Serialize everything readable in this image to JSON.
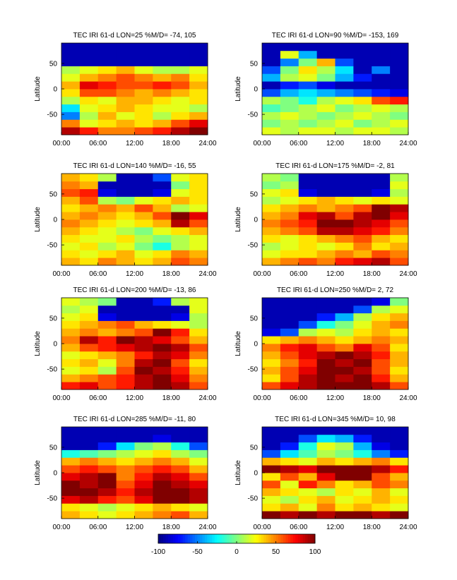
{
  "figure": {
    "ylabel": "Latitude",
    "x_ticks": [
      "00:00",
      "06:00",
      "12:00",
      "18:00",
      "24:00"
    ],
    "y_ticks": [
      "50",
      "0",
      "-50"
    ],
    "colorbar": {
      "ticks": [
        "-100",
        "-50",
        "0",
        "50",
        "100"
      ],
      "range": [
        -100,
        100
      ],
      "colormap": "jet",
      "missing_color": "#ffffff"
    }
  },
  "chart_data": [
    {
      "type": "heatmap",
      "title": "TEC IRI 61-d LON=25 %M/D= -74, 105",
      "x": "local time 00:00-24:00",
      "y": "latitude -90..90",
      "xlim": [
        0,
        24
      ],
      "ylim": [
        -90,
        90
      ],
      "yticks": [
        50,
        0,
        -50
      ],
      "hour_bands": [
        0,
        3,
        6,
        9,
        12,
        15,
        18,
        21,
        24
      ],
      "lat_bands": [
        -90,
        -75,
        -60,
        -45,
        -30,
        -15,
        0,
        15,
        30,
        45,
        60,
        75,
        90
      ],
      "values": [
        [
          90,
          70,
          50,
          50,
          60,
          70,
          90,
          100
        ],
        [
          50,
          20,
          30,
          40,
          30,
          40,
          60,
          80
        ],
        [
          -50,
          10,
          40,
          20,
          30,
          10,
          30,
          40
        ],
        [
          -30,
          20,
          30,
          40,
          30,
          20,
          20,
          10
        ],
        [
          10,
          30,
          20,
          40,
          40,
          30,
          20,
          30
        ],
        [
          30,
          60,
          60,
          50,
          40,
          50,
          40,
          30
        ],
        [
          40,
          80,
          70,
          60,
          60,
          70,
          60,
          40
        ],
        [
          20,
          40,
          50,
          60,
          50,
          40,
          50,
          30
        ],
        [
          10,
          20,
          30,
          40,
          20,
          10,
          10,
          20
        ],
        [
          -90,
          -90,
          -90,
          -90,
          -90,
          -90,
          -90,
          -90
        ],
        [
          -90,
          -90,
          -90,
          -90,
          -90,
          -90,
          -90,
          -90
        ],
        [
          -90,
          -90,
          -90,
          -90,
          -90,
          -90,
          -90,
          -90
        ]
      ]
    },
    {
      "type": "heatmap",
      "title": "TEC IRI 61-d LON=90 %M/D= -153, 169",
      "x": "local time 00:00-24:00",
      "y": "latitude -90..90",
      "xlim": [
        0,
        24
      ],
      "ylim": [
        -90,
        90
      ],
      "yticks": [
        50,
        0,
        -50
      ],
      "hour_bands": [
        0,
        3,
        6,
        9,
        12,
        15,
        18,
        21,
        24
      ],
      "lat_bands": [
        -90,
        -75,
        -60,
        -45,
        -30,
        -15,
        0,
        15,
        30,
        45,
        60,
        75,
        90
      ],
      "values": [
        [
          20,
          10,
          20,
          20,
          10,
          20,
          20,
          10
        ],
        [
          0,
          10,
          0,
          10,
          20,
          0,
          10,
          20
        ],
        [
          10,
          20,
          10,
          0,
          10,
          20,
          10,
          0
        ],
        [
          -10,
          0,
          10,
          20,
          0,
          10,
          20,
          10
        ],
        [
          10,
          0,
          -20,
          10,
          20,
          30,
          60,
          70
        ],
        [
          -60,
          -40,
          -30,
          -40,
          -50,
          -60,
          -70,
          -80
        ],
        [
          -90,
          -70,
          -60,
          -80,
          -90,
          -90,
          -90,
          -90
        ],
        [
          -40,
          10,
          20,
          0,
          -40,
          -70,
          -90,
          -90
        ],
        [
          -60,
          0,
          30,
          10,
          -30,
          -90,
          -50,
          -90
        ],
        [
          -90,
          -50,
          0,
          40,
          -60,
          -90,
          -90,
          -90
        ],
        [
          -90,
          20,
          -40,
          -90,
          -90,
          -90,
          -90,
          -90
        ],
        [
          -90,
          -90,
          -90,
          -90,
          -90,
          -90,
          -90,
          -90
        ]
      ]
    },
    {
      "type": "heatmap",
      "title": "TEC IRI 61-d LON=140 %M/D= -16, 55",
      "x": "local time 00:00-24:00",
      "y": "latitude -90..90",
      "xlim": [
        0,
        24
      ],
      "ylim": [
        -90,
        90
      ],
      "yticks": [
        50,
        0,
        -50
      ],
      "hour_bands": [
        0,
        3,
        6,
        9,
        12,
        15,
        18,
        21,
        24
      ],
      "lat_bands": [
        -90,
        -75,
        -60,
        -45,
        -30,
        -15,
        0,
        15,
        30,
        45,
        60,
        75,
        90
      ],
      "values": [
        [
          40,
          30,
          50,
          40,
          30,
          40,
          60,
          50
        ],
        [
          30,
          20,
          30,
          40,
          20,
          30,
          50,
          40
        ],
        [
          20,
          30,
          10,
          20,
          0,
          -20,
          10,
          20
        ],
        [
          30,
          20,
          20,
          30,
          10,
          0,
          10,
          20
        ],
        [
          40,
          30,
          20,
          10,
          0,
          20,
          30,
          40
        ],
        [
          50,
          40,
          30,
          20,
          30,
          40,
          90,
          60
        ],
        [
          40,
          50,
          40,
          30,
          40,
          60,
          100,
          80
        ],
        [
          30,
          40,
          50,
          40,
          60,
          40,
          10,
          20
        ],
        [
          40,
          60,
          10,
          0,
          20,
          30,
          40,
          30
        ],
        [
          60,
          70,
          -80,
          -90,
          -90,
          -80,
          20,
          30
        ],
        [
          50,
          40,
          -90,
          -90,
          -90,
          -90,
          0,
          30
        ],
        [
          40,
          30,
          10,
          -90,
          -90,
          -60,
          20,
          30
        ]
      ]
    },
    {
      "type": "heatmap",
      "title": "TEC IRI 61-d LON=175 %M/D= -2, 81",
      "x": "local time 00:00-24:00",
      "y": "latitude -90..90",
      "xlim": [
        0,
        24
      ],
      "ylim": [
        -90,
        90
      ],
      "yticks": [
        50,
        0,
        -50
      ],
      "hour_bands": [
        0,
        3,
        6,
        9,
        12,
        15,
        18,
        21,
        24
      ],
      "lat_bands": [
        -90,
        -75,
        -60,
        -45,
        -30,
        -15,
        0,
        15,
        30,
        45,
        60,
        75,
        90
      ],
      "values": [
        [
          40,
          50,
          60,
          50,
          70,
          80,
          90,
          60
        ],
        [
          20,
          30,
          30,
          40,
          50,
          40,
          60,
          50
        ],
        [
          10,
          20,
          30,
          20,
          30,
          50,
          30,
          40
        ],
        [
          30,
          20,
          30,
          40,
          50,
          60,
          40,
          30
        ],
        [
          40,
          50,
          60,
          90,
          90,
          80,
          70,
          50
        ],
        [
          50,
          60,
          70,
          100,
          100,
          90,
          80,
          60
        ],
        [
          40,
          50,
          80,
          90,
          60,
          90,
          100,
          80
        ],
        [
          30,
          40,
          50,
          40,
          50,
          60,
          100,
          90
        ],
        [
          10,
          20,
          30,
          40,
          30,
          20,
          30,
          20
        ],
        [
          20,
          30,
          -80,
          -90,
          -90,
          -90,
          -80,
          10
        ],
        [
          0,
          10,
          -90,
          -90,
          -90,
          -90,
          -90,
          20
        ],
        [
          10,
          0,
          -90,
          -90,
          -90,
          -90,
          -90,
          10
        ]
      ]
    },
    {
      "type": "heatmap",
      "title": "TEC IRI 61-d LON=200 %M/D= -13, 86",
      "x": "local time 00:00-24:00",
      "y": "latitude -90..90",
      "xlim": [
        0,
        24
      ],
      "ylim": [
        -90,
        90
      ],
      "yticks": [
        50,
        0,
        -50
      ],
      "hour_bands": [
        0,
        3,
        6,
        9,
        12,
        15,
        18,
        21,
        24
      ],
      "lat_bands": [
        -90,
        -75,
        -60,
        -45,
        -30,
        -15,
        0,
        15,
        30,
        45,
        60,
        75,
        90
      ],
      "values": [
        [
          70,
          80,
          60,
          70,
          90,
          100,
          90,
          60
        ],
        [
          40,
          50,
          60,
          70,
          90,
          100,
          80,
          50
        ],
        [
          20,
          30,
          10,
          60,
          100,
          90,
          70,
          40
        ],
        [
          30,
          40,
          20,
          50,
          90,
          100,
          60,
          30
        ],
        [
          20,
          30,
          40,
          50,
          70,
          90,
          80,
          50
        ],
        [
          40,
          60,
          70,
          80,
          90,
          100,
          90,
          60
        ],
        [
          50,
          90,
          70,
          100,
          90,
          80,
          60,
          40
        ],
        [
          40,
          50,
          40,
          50,
          60,
          100,
          70,
          30
        ],
        [
          30,
          40,
          50,
          60,
          40,
          30,
          20,
          10
        ],
        [
          20,
          30,
          -80,
          -90,
          -90,
          -90,
          -80,
          10
        ],
        [
          10,
          20,
          -90,
          -90,
          -90,
          -90,
          -90,
          20
        ],
        [
          20,
          10,
          0,
          -90,
          -90,
          -70,
          10,
          20
        ]
      ]
    },
    {
      "type": "heatmap",
      "title": "TEC IRI 61-d LON=250 %M/D= 2, 72",
      "x": "local time 00:00-24:00",
      "y": "latitude -90..90",
      "xlim": [
        0,
        24
      ],
      "ylim": [
        -90,
        90
      ],
      "yticks": [
        50,
        0,
        -50
      ],
      "hour_bands": [
        0,
        3,
        6,
        9,
        12,
        15,
        18,
        21,
        24
      ],
      "lat_bands": [
        -90,
        -75,
        -60,
        -45,
        -30,
        -15,
        0,
        15,
        30,
        45,
        60,
        75,
        90
      ],
      "values": [
        [
          60,
          80,
          90,
          100,
          100,
          100,
          90,
          60
        ],
        [
          30,
          60,
          90,
          100,
          90,
          100,
          70,
          40
        ],
        [
          40,
          60,
          80,
          100,
          100,
          90,
          60,
          30
        ],
        [
          30,
          50,
          70,
          100,
          90,
          100,
          60,
          40
        ],
        [
          40,
          60,
          80,
          90,
          100,
          90,
          70,
          40
        ],
        [
          50,
          70,
          80,
          60,
          50,
          80,
          60,
          30
        ],
        [
          30,
          40,
          50,
          40,
          30,
          40,
          50,
          40
        ],
        [
          -80,
          -60,
          10,
          20,
          10,
          30,
          40,
          30
        ],
        [
          -90,
          -90,
          -60,
          -20,
          0,
          20,
          40,
          50
        ],
        [
          -90,
          -90,
          -90,
          -70,
          -40,
          10,
          30,
          40
        ],
        [
          -90,
          -90,
          -90,
          -90,
          -90,
          -60,
          10,
          20
        ],
        [
          -90,
          -90,
          -90,
          -90,
          -90,
          -90,
          -80,
          0
        ]
      ]
    },
    {
      "type": "heatmap",
      "title": "TEC IRI 61-d LON=285 %M/D= -11, 80",
      "x": "local time 00:00-24:00",
      "y": "latitude -90..90",
      "xlim": [
        0,
        24
      ],
      "ylim": [
        -90,
        90
      ],
      "yticks": [
        50,
        0,
        -50
      ],
      "hour_bands": [
        0,
        3,
        6,
        9,
        12,
        15,
        18,
        21,
        24
      ],
      "lat_bands": [
        -90,
        -75,
        -60,
        -45,
        -30,
        -15,
        0,
        15,
        30,
        45,
        60,
        75,
        90
      ],
      "values": [
        [
          40,
          30,
          20,
          30,
          40,
          50,
          60,
          40
        ],
        [
          30,
          20,
          10,
          20,
          30,
          40,
          30,
          20
        ],
        [
          80,
          90,
          70,
          60,
          80,
          100,
          100,
          90
        ],
        [
          100,
          100,
          90,
          70,
          90,
          100,
          100,
          90
        ],
        [
          100,
          90,
          100,
          60,
          80,
          100,
          90,
          80
        ],
        [
          80,
          90,
          100,
          50,
          70,
          90,
          80,
          60
        ],
        [
          60,
          70,
          60,
          50,
          60,
          70,
          60,
          40
        ],
        [
          40,
          50,
          40,
          30,
          40,
          50,
          40,
          20
        ],
        [
          -20,
          -10,
          0,
          10,
          20,
          30,
          10,
          0
        ],
        [
          -90,
          -90,
          -70,
          -30,
          0,
          10,
          -20,
          -60
        ],
        [
          -90,
          -90,
          -90,
          -90,
          -90,
          -80,
          -90,
          -90
        ],
        [
          -90,
          -90,
          -90,
          -90,
          -90,
          -90,
          -90,
          -90
        ]
      ]
    },
    {
      "type": "heatmap",
      "title": "TEC IRI 61-d LON=345 %M/D= 10, 98",
      "x": "local time 00:00-24:00",
      "y": "latitude -90..90",
      "xlim": [
        0,
        24
      ],
      "ylim": [
        -90,
        90
      ],
      "yticks": [
        50,
        0,
        -50
      ],
      "hour_bands": [
        0,
        3,
        6,
        9,
        12,
        15,
        18,
        21,
        24
      ],
      "lat_bands": [
        -90,
        -75,
        -60,
        -45,
        -30,
        -15,
        0,
        15,
        30,
        45,
        60,
        75,
        90
      ],
      "values": [
        [
          100,
          90,
          100,
          90,
          100,
          100,
          90,
          100
        ],
        [
          30,
          40,
          20,
          50,
          30,
          40,
          30,
          20
        ],
        [
          20,
          10,
          30,
          40,
          20,
          30,
          40,
          30
        ],
        [
          40,
          30,
          20,
          10,
          30,
          20,
          40,
          20
        ],
        [
          60,
          20,
          70,
          50,
          30,
          40,
          60,
          50
        ],
        [
          30,
          60,
          40,
          80,
          100,
          100,
          60,
          40
        ],
        [
          100,
          90,
          80,
          100,
          100,
          100,
          90,
          70
        ],
        [
          40,
          30,
          20,
          40,
          30,
          40,
          50,
          30
        ],
        [
          -60,
          -30,
          -10,
          10,
          0,
          -20,
          -50,
          -70
        ],
        [
          -90,
          -70,
          -20,
          20,
          10,
          -40,
          -80,
          -90
        ],
        [
          -90,
          -90,
          -60,
          -30,
          -40,
          -70,
          -90,
          -90
        ],
        [
          -90,
          -90,
          -90,
          -90,
          -90,
          -90,
          -90,
          -90
        ]
      ]
    }
  ]
}
